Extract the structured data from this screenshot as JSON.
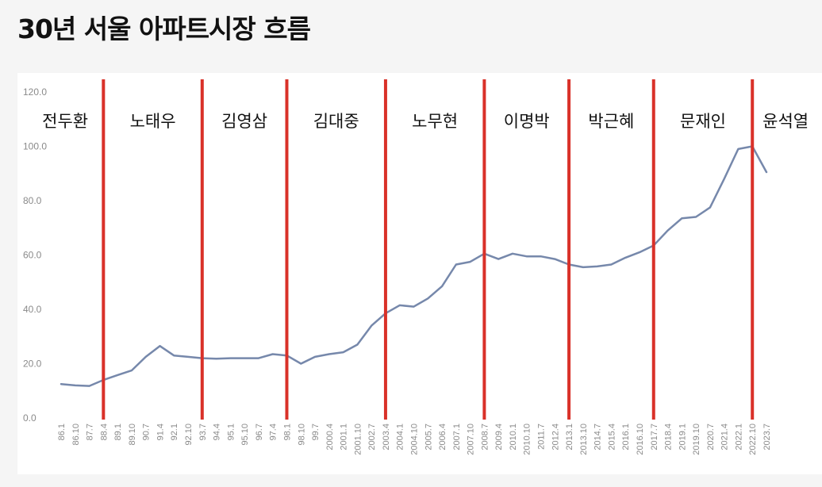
{
  "title": "30년 서울 아파트시장 흐름",
  "colors": {
    "line": "#7688ab",
    "divider": "#d93129",
    "tick": "#8a8a8a"
  },
  "chart_data": {
    "type": "line",
    "title": "30년 서울 아파트시장 흐름",
    "xlabel": "",
    "ylabel": "",
    "ylim": [
      0,
      120
    ],
    "y_ticks": [
      "0.0",
      "20.0",
      "40.0",
      "60.0",
      "80.0",
      "100.0",
      "120.0"
    ],
    "x_ticks": [
      "86.1",
      "86.10",
      "87.7",
      "88.4",
      "89.1",
      "89.10",
      "90.7",
      "91.4",
      "92.1",
      "92.10",
      "93.7",
      "94.4",
      "95.1",
      "95.10",
      "96.7",
      "97.4",
      "98.1",
      "98.10",
      "99.7",
      "2000.4",
      "2001.1",
      "2001.10",
      "2002.7",
      "2003.4",
      "2004.1",
      "2004.10",
      "2005.7",
      "2006.4",
      "2007.1",
      "2007.10",
      "2008.7",
      "2009.4",
      "2010.1",
      "2010.10",
      "2011.7",
      "2012.4",
      "2013.1",
      "2013.10",
      "2014.7",
      "2015.4",
      "2016.1",
      "2016.10",
      "2017.7",
      "2018.4",
      "2019.1",
      "2019.10",
      "2020.7",
      "2021.4",
      "2022.1",
      "2022.10",
      "2023.7"
    ],
    "grid": false,
    "legend": "none",
    "series": [
      {
        "x": [
          "86.1",
          "86.10",
          "87.7",
          "88.4",
          "89.1",
          "89.10",
          "90.7",
          "91.4",
          "92.1",
          "92.10",
          "93.7",
          "94.4",
          "95.1",
          "95.10",
          "96.7",
          "97.4",
          "98.1",
          "98.10",
          "99.7",
          "2000.4",
          "2001.1",
          "2001.10",
          "2002.7",
          "2003.4",
          "2004.1",
          "2004.10",
          "2005.7",
          "2006.4",
          "2007.1",
          "2007.10",
          "2008.7",
          "2009.4",
          "2010.1",
          "2010.10",
          "2011.7",
          "2012.4",
          "2013.1",
          "2013.10",
          "2014.7",
          "2015.4",
          "2016.1",
          "2016.10",
          "2017.7",
          "2018.4",
          "2019.1",
          "2019.10",
          "2020.7",
          "2021.4",
          "2022.1",
          "2022.10",
          "2023.7"
        ],
        "values": [
          12.5,
          12.0,
          11.8,
          14.0,
          15.8,
          17.5,
          22.5,
          26.5,
          23.0,
          22.5,
          22.0,
          21.8,
          22.0,
          22.0,
          22.0,
          23.5,
          23.0,
          20.0,
          22.5,
          23.5,
          24.2,
          27.0,
          34.0,
          38.5,
          41.5,
          41.0,
          44.0,
          48.5,
          56.5,
          57.5,
          60.5,
          58.5,
          60.5,
          59.5,
          59.5,
          58.5,
          56.5,
          55.5,
          55.8,
          56.5,
          59.0,
          61.0,
          63.5,
          69.0,
          73.5,
          74.0,
          77.5,
          88.0,
          99.0,
          100.0,
          90.5
        ]
      }
    ],
    "annotations": [
      {
        "label": "전두환",
        "at": "86.1"
      },
      {
        "label": "노태우",
        "at": "88.4"
      },
      {
        "label": "김영삼",
        "at": "93.7"
      },
      {
        "label": "김대중",
        "at": "98.1"
      },
      {
        "label": "노무현",
        "at": "2003.4"
      },
      {
        "label": "이명박",
        "at": "2008.7"
      },
      {
        "label": "박근혜",
        "at": "2013.1"
      },
      {
        "label": "문재인",
        "at": "2017.7"
      },
      {
        "label": "윤석열",
        "at": "2022.10"
      }
    ]
  }
}
